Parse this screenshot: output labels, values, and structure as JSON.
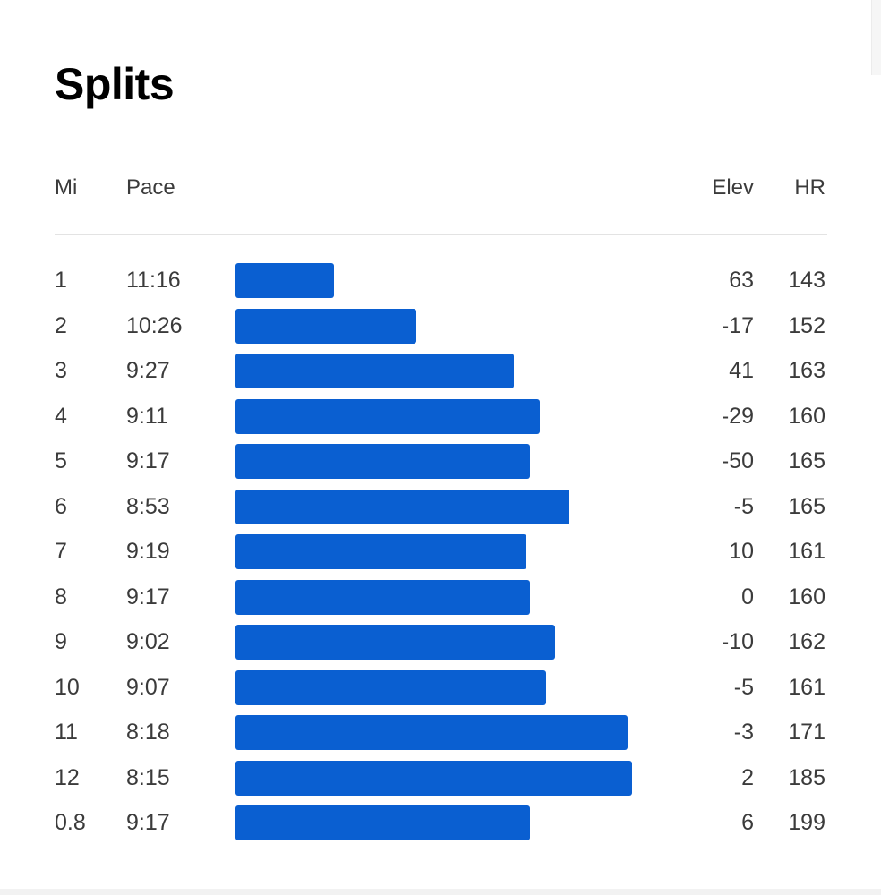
{
  "title": "Splits",
  "accent_color": "#0a5fd1",
  "columns": {
    "mi": "Mi",
    "pace": "Pace",
    "elev": "Elev",
    "hr": "HR"
  },
  "splits": [
    {
      "mi": "1",
      "pace": "11:16",
      "pace_seconds": 676,
      "elev": "63",
      "hr": "143"
    },
    {
      "mi": "2",
      "pace": "10:26",
      "pace_seconds": 626,
      "elev": "-17",
      "hr": "152"
    },
    {
      "mi": "3",
      "pace": "9:27",
      "pace_seconds": 567,
      "elev": "41",
      "hr": "163"
    },
    {
      "mi": "4",
      "pace": "9:11",
      "pace_seconds": 551,
      "elev": "-29",
      "hr": "160"
    },
    {
      "mi": "5",
      "pace": "9:17",
      "pace_seconds": 557,
      "elev": "-50",
      "hr": "165"
    },
    {
      "mi": "6",
      "pace": "8:53",
      "pace_seconds": 533,
      "elev": "-5",
      "hr": "165"
    },
    {
      "mi": "7",
      "pace": "9:19",
      "pace_seconds": 559,
      "elev": "10",
      "hr": "161"
    },
    {
      "mi": "8",
      "pace": "9:17",
      "pace_seconds": 557,
      "elev": "0",
      "hr": "160"
    },
    {
      "mi": "9",
      "pace": "9:02",
      "pace_seconds": 542,
      "elev": "-10",
      "hr": "162"
    },
    {
      "mi": "10",
      "pace": "9:07",
      "pace_seconds": 547,
      "elev": "-5",
      "hr": "161"
    },
    {
      "mi": "11",
      "pace": "8:18",
      "pace_seconds": 498,
      "elev": "-3",
      "hr": "171"
    },
    {
      "mi": "12",
      "pace": "8:15",
      "pace_seconds": 495,
      "elev": "2",
      "hr": "185"
    },
    {
      "mi": "0.8",
      "pace": "9:17",
      "pace_seconds": 557,
      "elev": "6",
      "hr": "199"
    }
  ]
}
